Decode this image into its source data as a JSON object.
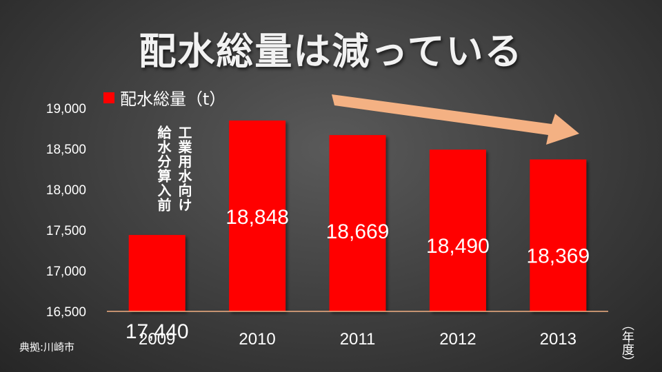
{
  "title": "配水総量は減っている",
  "legend_label": "配水総量（t）",
  "note_left": "給水分算入前",
  "note_right": "工業用水向け",
  "source": "典拠:川崎市",
  "unit": "（年度）",
  "colors": {
    "bar": "#ff0000",
    "arrow": "#f4b183",
    "baseline": "#f4b183"
  },
  "y_tick_labels": [
    "16,500",
    "17,000",
    "17,500",
    "18,000",
    "18,500",
    "19,000"
  ],
  "value_labels": [
    "17,440",
    "18,848",
    "18,669",
    "18,490",
    "18,369"
  ],
  "chart_data": {
    "type": "bar",
    "categories": [
      "2009",
      "2010",
      "2011",
      "2012",
      "2013"
    ],
    "series": [
      {
        "name": "配水総量（t）",
        "values": [
          17440,
          18848,
          18669,
          18490,
          18369
        ]
      }
    ],
    "ylim": [
      16500,
      19000
    ],
    "yticks": [
      16500,
      17000,
      17500,
      18000,
      18500,
      19000
    ],
    "grid": false,
    "legend": "top-left"
  }
}
